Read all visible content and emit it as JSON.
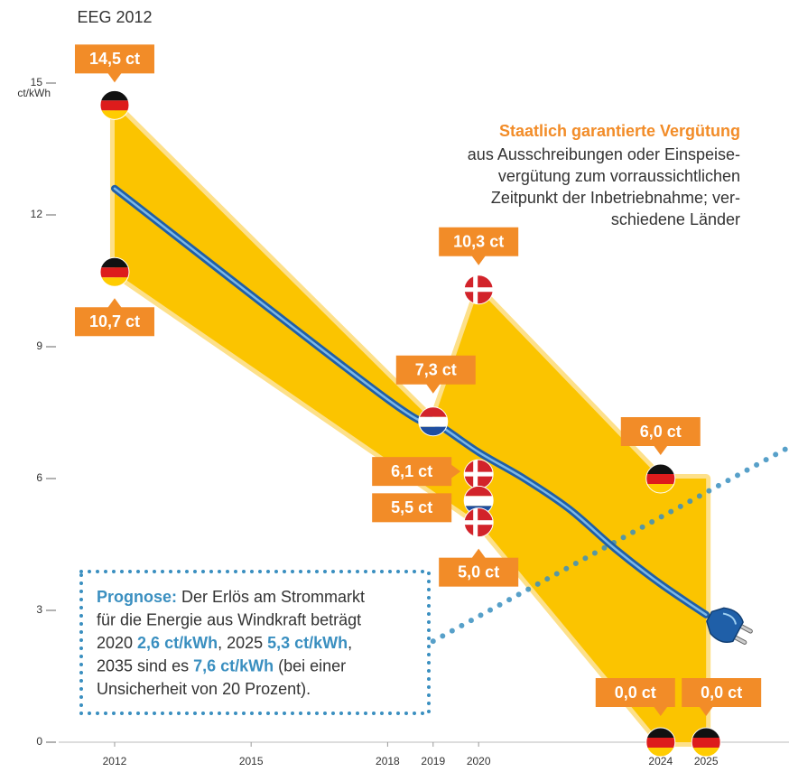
{
  "chart_data": {
    "type": "line",
    "annotation": "EEG 2012",
    "y_unit": "ct/kWh",
    "xlim": [
      2010.8,
      2026.8
    ],
    "ylim": [
      0,
      15
    ],
    "xticks": [
      2012,
      2015,
      2018,
      2019,
      2020,
      2024,
      2025
    ],
    "yticks": [
      0,
      3,
      6,
      9,
      12,
      15
    ],
    "band": {
      "x": [
        2012,
        2019,
        2020,
        2024,
        2025
      ],
      "upper": [
        14.5,
        7.3,
        10.3,
        6.0,
        6.0
      ],
      "x_lower": [
        2012,
        2020,
        2024,
        2025
      ],
      "lower": [
        10.7,
        5.0,
        0.0,
        0.0
      ],
      "color": "#fbc400"
    },
    "cable": {
      "x": [
        2012,
        2018,
        2019,
        2020,
        2021,
        2022,
        2023,
        2024,
        2025
      ],
      "values": [
        12.6,
        7.8,
        7.3,
        6.6,
        6.0,
        5.3,
        4.4,
        3.6,
        2.9
      ],
      "color": "#1f5fa8"
    },
    "forecast": {
      "x": [
        2019,
        2026.8
      ],
      "values": [
        2.3,
        6.7
      ],
      "color": "#3a8fc0"
    },
    "points": [
      {
        "x": 2012,
        "value": 14.5,
        "value_label": "14,5 ct",
        "flag": "de"
      },
      {
        "x": 2012,
        "value": 10.7,
        "value_label": "10,7 ct",
        "flag": "de"
      },
      {
        "x": 2020,
        "value": 10.3,
        "value_label": "10,3 ct",
        "flag": "dk"
      },
      {
        "x": 2019,
        "value": 7.3,
        "value_label": "7,3 ct",
        "flag": "nl"
      },
      {
        "x": 2020,
        "value": 6.1,
        "value_label": "6,1 ct",
        "flag": "dk"
      },
      {
        "x": 2020,
        "value": 5.5,
        "value_label": "5,5 ct",
        "flag": "nl"
      },
      {
        "x": 2020,
        "value": 5.0,
        "value_label": "5,0 ct",
        "flag": "dk"
      },
      {
        "x": 2024,
        "value": 6.0,
        "value_label": "6,0 ct",
        "flag": "de"
      },
      {
        "x": 2024,
        "value": 0.0,
        "value_label": "0,0 ct",
        "flag": "de"
      },
      {
        "x": 2025,
        "value": 0.0,
        "value_label": "0,0 ct",
        "flag": "de"
      }
    ],
    "label_color": "#f28c28",
    "legend_title": "Staatlich garantierte Vergütung",
    "legend_text": [
      "aus Ausschreibungen oder Einspeise-",
      "vergütung zum vorraussichtlichen",
      "Zeitpunkt der Inbetriebnahme; ver-",
      "schiedene Länder"
    ],
    "prognose": [
      [
        {
          "text": "Prognose:",
          "bold": true
        },
        {
          "text": " Der Erlös am Strommarkt",
          "bold": false
        }
      ],
      [
        {
          "text": "für die Energie aus Windkraft beträgt",
          "bold": false
        }
      ],
      [
        {
          "text": "2020 ",
          "bold": false
        },
        {
          "text": "2,6 ct/kWh",
          "bold": true
        },
        {
          "text": ", 2025 ",
          "bold": false
        },
        {
          "text": "5,3 ct/kWh",
          "bold": true
        },
        {
          "text": ",",
          "bold": false
        }
      ],
      [
        {
          "text": "2035 sind es ",
          "bold": false
        },
        {
          "text": "7,6 ct/kWh",
          "bold": true
        },
        {
          "text": " (bei einer",
          "bold": false
        }
      ],
      [
        {
          "text": "Unsicherheit von 20 Prozent).",
          "bold": false
        }
      ]
    ]
  }
}
